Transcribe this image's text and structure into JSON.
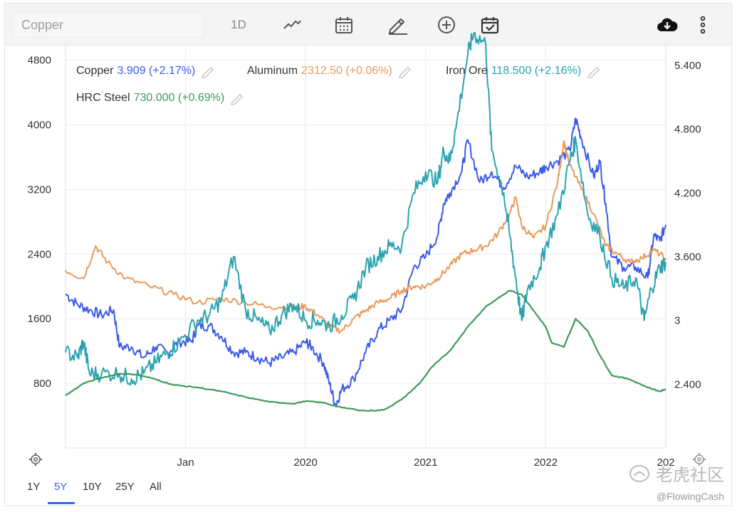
{
  "toolbar": {
    "search_placeholder": "Copper",
    "period": "1D",
    "icons": [
      "line-chart-icon",
      "calendar-icon",
      "pencil-icon",
      "plus-circle-icon",
      "calendar-check-icon",
      "cloud-download-icon",
      "more-vertical-icon"
    ]
  },
  "legend": [
    {
      "name": "Copper",
      "value": "3.909 (+2.17%)",
      "color": "#3b5be8"
    },
    {
      "name": "Aluminum",
      "value": "2312.50 (+0.06%)",
      "color": "#e89a5a"
    },
    {
      "name": "Iron Ore",
      "value": "118.500 (+2.16%)",
      "color": "#2aa3b1"
    },
    {
      "name": "HRC Steel",
      "value": "730.000 (+0.69%)",
      "color": "#3e9a5b"
    }
  ],
  "ranges": [
    "1Y",
    "5Y",
    "10Y",
    "25Y",
    "All"
  ],
  "active_range": "5Y",
  "watermark": "老虎社区",
  "credit": "@FlowingCash",
  "chart_data": {
    "type": "line",
    "x_ticks": [
      "Jan",
      "2020",
      "2021",
      "2022",
      "202"
    ],
    "x_tick_years": [
      2019.0,
      2020.0,
      2021.0,
      2022.0,
      2023.0
    ],
    "xlim": [
      2018.0,
      2023.0
    ],
    "y_left": {
      "ticks": [
        800,
        1600,
        2400,
        3200,
        4000,
        4800
      ],
      "range": [
        0,
        5000
      ]
    },
    "y_right": {
      "ticks": [
        "2.400",
        "3",
        "3.600",
        "4.200",
        "4.800",
        "5.400"
      ],
      "tick_values": [
        2.4,
        3.0,
        3.6,
        4.2,
        4.8,
        5.4
      ],
      "range": [
        1.8,
        5.6
      ]
    },
    "series": [
      {
        "name": "Copper",
        "axis": "right",
        "color": "#3b5be8",
        "points": [
          [
            2018.0,
            3.25
          ],
          [
            2018.1,
            3.15
          ],
          [
            2018.2,
            3.1
          ],
          [
            2018.3,
            3.05
          ],
          [
            2018.4,
            3.1
          ],
          [
            2018.45,
            2.75
          ],
          [
            2018.55,
            2.75
          ],
          [
            2018.65,
            2.65
          ],
          [
            2018.75,
            2.75
          ],
          [
            2018.85,
            2.7
          ],
          [
            2018.95,
            2.8
          ],
          [
            2019.05,
            2.8
          ],
          [
            2019.1,
            2.95
          ],
          [
            2019.2,
            2.95
          ],
          [
            2019.3,
            2.85
          ],
          [
            2019.4,
            2.7
          ],
          [
            2019.5,
            2.7
          ],
          [
            2019.6,
            2.65
          ],
          [
            2019.7,
            2.6
          ],
          [
            2019.8,
            2.65
          ],
          [
            2019.9,
            2.7
          ],
          [
            2020.0,
            2.8
          ],
          [
            2020.05,
            2.75
          ],
          [
            2020.15,
            2.6
          ],
          [
            2020.2,
            2.4
          ],
          [
            2020.25,
            2.2
          ],
          [
            2020.3,
            2.35
          ],
          [
            2020.4,
            2.45
          ],
          [
            2020.5,
            2.7
          ],
          [
            2020.6,
            2.9
          ],
          [
            2020.7,
            3.0
          ],
          [
            2020.8,
            3.1
          ],
          [
            2020.9,
            3.5
          ],
          [
            2021.0,
            3.6
          ],
          [
            2021.1,
            3.8
          ],
          [
            2021.15,
            4.1
          ],
          [
            2021.2,
            4.2
          ],
          [
            2021.3,
            4.4
          ],
          [
            2021.35,
            4.7
          ],
          [
            2021.45,
            4.3
          ],
          [
            2021.55,
            4.4
          ],
          [
            2021.65,
            4.25
          ],
          [
            2021.75,
            4.45
          ],
          [
            2021.85,
            4.35
          ],
          [
            2021.95,
            4.4
          ],
          [
            2022.0,
            4.45
          ],
          [
            2022.1,
            4.5
          ],
          [
            2022.2,
            4.6
          ],
          [
            2022.25,
            4.9
          ],
          [
            2022.3,
            4.7
          ],
          [
            2022.4,
            4.35
          ],
          [
            2022.45,
            4.5
          ],
          [
            2022.5,
            4.1
          ],
          [
            2022.55,
            3.6
          ],
          [
            2022.65,
            3.5
          ],
          [
            2022.75,
            3.5
          ],
          [
            2022.85,
            3.4
          ],
          [
            2022.9,
            3.8
          ],
          [
            2022.95,
            3.75
          ],
          [
            2023.0,
            3.9
          ]
        ]
      },
      {
        "name": "Aluminum",
        "axis": "left",
        "color": "#e89a5a",
        "points": [
          [
            2018.0,
            2200
          ],
          [
            2018.15,
            2100
          ],
          [
            2018.25,
            2500
          ],
          [
            2018.35,
            2300
          ],
          [
            2018.5,
            2100
          ],
          [
            2018.7,
            2000
          ],
          [
            2018.9,
            1900
          ],
          [
            2019.1,
            1800
          ],
          [
            2019.3,
            1850
          ],
          [
            2019.5,
            1800
          ],
          [
            2019.7,
            1750
          ],
          [
            2019.9,
            1750
          ],
          [
            2020.0,
            1750
          ],
          [
            2020.1,
            1650
          ],
          [
            2020.2,
            1500
          ],
          [
            2020.3,
            1450
          ],
          [
            2020.4,
            1600
          ],
          [
            2020.5,
            1700
          ],
          [
            2020.6,
            1800
          ],
          [
            2020.7,
            1850
          ],
          [
            2020.8,
            1950
          ],
          [
            2020.9,
            2000
          ],
          [
            2021.0,
            2000
          ],
          [
            2021.1,
            2100
          ],
          [
            2021.2,
            2250
          ],
          [
            2021.3,
            2400
          ],
          [
            2021.4,
            2450
          ],
          [
            2021.5,
            2500
          ],
          [
            2021.6,
            2650
          ],
          [
            2021.7,
            2900
          ],
          [
            2021.75,
            3100
          ],
          [
            2021.8,
            2750
          ],
          [
            2021.9,
            2600
          ],
          [
            2022.0,
            2750
          ],
          [
            2022.1,
            3300
          ],
          [
            2022.15,
            3800
          ],
          [
            2022.2,
            3500
          ],
          [
            2022.3,
            3200
          ],
          [
            2022.4,
            2900
          ],
          [
            2022.5,
            2500
          ],
          [
            2022.6,
            2400
          ],
          [
            2022.7,
            2300
          ],
          [
            2022.8,
            2350
          ],
          [
            2022.9,
            2450
          ],
          [
            2023.0,
            2350
          ]
        ]
      },
      {
        "name": "Iron Ore",
        "axis": "right",
        "color": "#2aa3b1",
        "points": [
          [
            2018.0,
            2.7
          ],
          [
            2018.1,
            2.65
          ],
          [
            2018.15,
            2.8
          ],
          [
            2018.2,
            2.5
          ],
          [
            2018.3,
            2.5
          ],
          [
            2018.45,
            2.5
          ],
          [
            2018.55,
            2.45
          ],
          [
            2018.65,
            2.5
          ],
          [
            2018.75,
            2.6
          ],
          [
            2018.85,
            2.7
          ],
          [
            2018.95,
            2.8
          ],
          [
            2019.1,
            3.0
          ],
          [
            2019.2,
            3.05
          ],
          [
            2019.3,
            3.2
          ],
          [
            2019.4,
            3.6
          ],
          [
            2019.5,
            3.1
          ],
          [
            2019.6,
            3.0
          ],
          [
            2019.7,
            2.9
          ],
          [
            2019.8,
            3.05
          ],
          [
            2019.9,
            3.15
          ],
          [
            2020.0,
            3.0
          ],
          [
            2020.1,
            3.0
          ],
          [
            2020.2,
            2.95
          ],
          [
            2020.3,
            3.05
          ],
          [
            2020.4,
            3.2
          ],
          [
            2020.5,
            3.5
          ],
          [
            2020.6,
            3.6
          ],
          [
            2020.7,
            3.7
          ],
          [
            2020.8,
            3.7
          ],
          [
            2020.9,
            4.2
          ],
          [
            2021.0,
            4.4
          ],
          [
            2021.1,
            4.3
          ],
          [
            2021.15,
            4.6
          ],
          [
            2021.2,
            4.5
          ],
          [
            2021.25,
            4.8
          ],
          [
            2021.35,
            5.5
          ],
          [
            2021.4,
            5.7
          ],
          [
            2021.5,
            5.6
          ],
          [
            2021.55,
            4.6
          ],
          [
            2021.65,
            4.2
          ],
          [
            2021.7,
            3.8
          ],
          [
            2021.75,
            3.4
          ],
          [
            2021.8,
            3.0
          ],
          [
            2021.85,
            3.3
          ],
          [
            2021.95,
            3.5
          ],
          [
            2022.0,
            3.7
          ],
          [
            2022.1,
            4.0
          ],
          [
            2022.2,
            4.5
          ],
          [
            2022.25,
            4.7
          ],
          [
            2022.35,
            4.0
          ],
          [
            2022.45,
            3.8
          ],
          [
            2022.55,
            3.4
          ],
          [
            2022.65,
            3.3
          ],
          [
            2022.75,
            3.4
          ],
          [
            2022.82,
            3.0
          ],
          [
            2022.88,
            3.3
          ],
          [
            2022.95,
            3.5
          ],
          [
            2023.0,
            3.55
          ]
        ]
      },
      {
        "name": "HRC Steel",
        "axis": "left",
        "color": "#3e9a5b",
        "points": [
          [
            2018.0,
            650
          ],
          [
            2018.15,
            800
          ],
          [
            2018.3,
            870
          ],
          [
            2018.45,
            920
          ],
          [
            2018.6,
            910
          ],
          [
            2018.75,
            850
          ],
          [
            2018.9,
            780
          ],
          [
            2019.1,
            750
          ],
          [
            2019.3,
            700
          ],
          [
            2019.5,
            630
          ],
          [
            2019.7,
            570
          ],
          [
            2019.9,
            550
          ],
          [
            2020.0,
            580
          ],
          [
            2020.15,
            560
          ],
          [
            2020.3,
            500
          ],
          [
            2020.5,
            460
          ],
          [
            2020.65,
            470
          ],
          [
            2020.8,
            600
          ],
          [
            2020.95,
            800
          ],
          [
            2021.05,
            1000
          ],
          [
            2021.2,
            1200
          ],
          [
            2021.35,
            1500
          ],
          [
            2021.5,
            1750
          ],
          [
            2021.6,
            1850
          ],
          [
            2021.7,
            1950
          ],
          [
            2021.8,
            1900
          ],
          [
            2021.9,
            1700
          ],
          [
            2022.0,
            1500
          ],
          [
            2022.05,
            1300
          ],
          [
            2022.15,
            1250
          ],
          [
            2022.25,
            1600
          ],
          [
            2022.35,
            1450
          ],
          [
            2022.45,
            1150
          ],
          [
            2022.55,
            900
          ],
          [
            2022.7,
            850
          ],
          [
            2022.85,
            750
          ],
          [
            2022.95,
            700
          ],
          [
            2023.0,
            730
          ]
        ]
      }
    ]
  }
}
